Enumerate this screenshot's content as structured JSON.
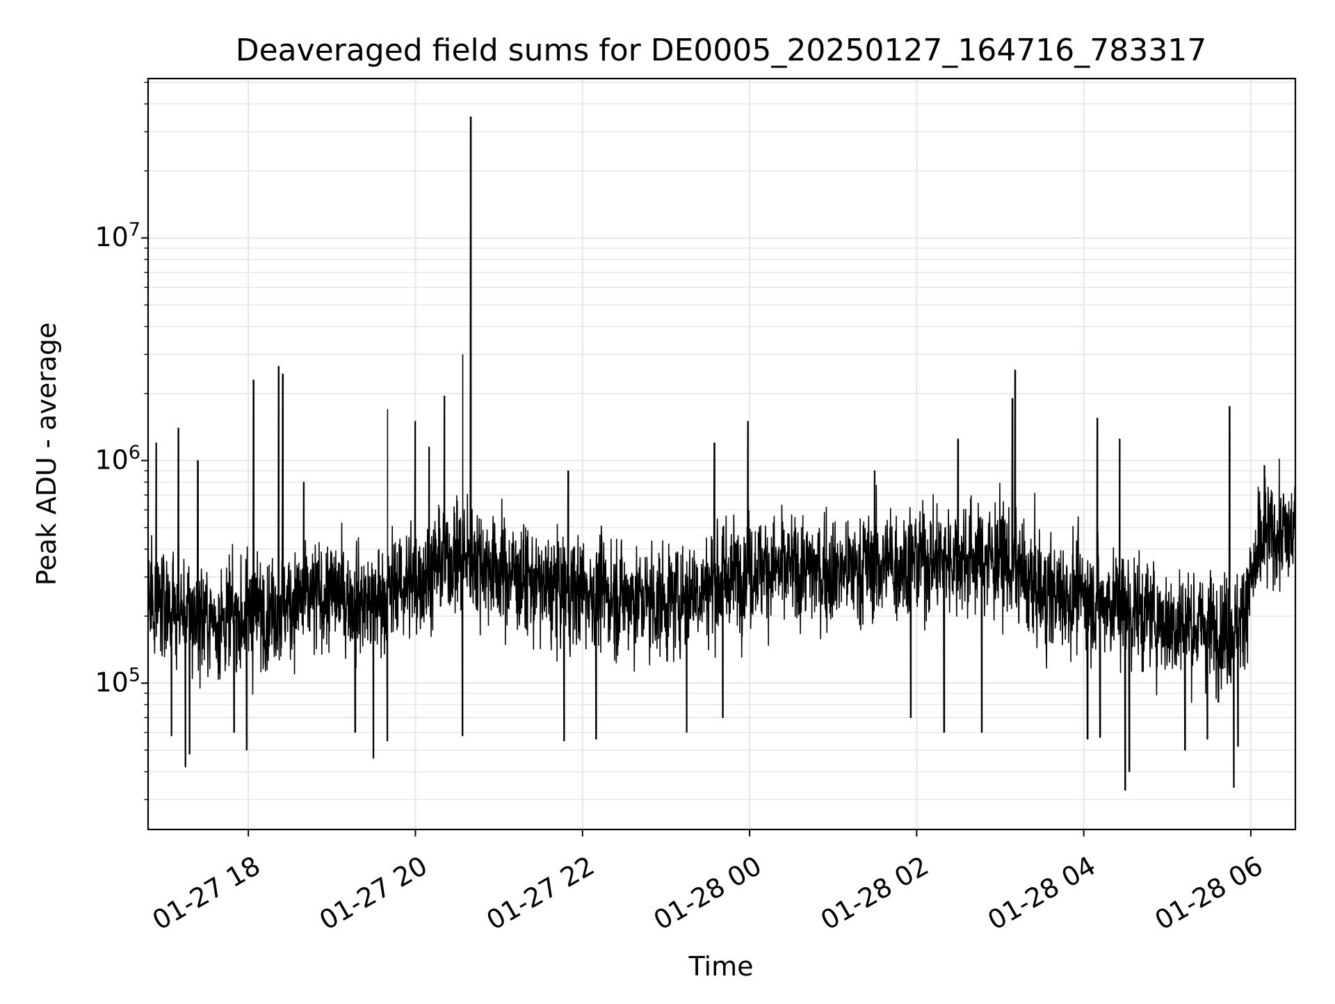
{
  "chart_data": {
    "type": "line",
    "title": "Deaveraged field sums for DE0005_20250127_164716_783317",
    "xlabel": "Time",
    "ylabel": "Peak ADU - average",
    "yscale": "log",
    "ylim": [
      22000,
      52000000
    ],
    "xlim": [
      "01-27 16:48",
      "01-28 06:32"
    ],
    "grid": true,
    "line_color": "#000000",
    "grid_color": "#e6e6e6",
    "x_ticks": [
      {
        "value": "01-27 18:00",
        "label": "01-27 18"
      },
      {
        "value": "01-27 20:00",
        "label": "01-27 20"
      },
      {
        "value": "01-27 22:00",
        "label": "01-27 22"
      },
      {
        "value": "01-28 00:00",
        "label": "01-28 00"
      },
      {
        "value": "01-28 02:00",
        "label": "01-28 02"
      },
      {
        "value": "01-28 04:00",
        "label": "01-28 04"
      },
      {
        "value": "01-28 06:00",
        "label": "01-28 06"
      }
    ],
    "y_ticks": [
      {
        "value": 100000,
        "base": "10",
        "exp": "5"
      },
      {
        "value": 1000000,
        "base": "10",
        "exp": "6"
      },
      {
        "value": 10000000,
        "base": "10",
        "exp": "7"
      }
    ],
    "series": [
      {
        "color": "#000000",
        "baseline_points": [
          {
            "x": "01-27 16:48",
            "y": 250000
          },
          {
            "x": "01-27 17:15",
            "y": 200000
          },
          {
            "x": "01-27 17:45",
            "y": 190000
          },
          {
            "x": "01-27 18:30",
            "y": 230000
          },
          {
            "x": "01-27 19:00",
            "y": 250000
          },
          {
            "x": "01-27 19:30",
            "y": 230000
          },
          {
            "x": "01-27 20:00",
            "y": 300000
          },
          {
            "x": "01-27 20:30",
            "y": 380000
          },
          {
            "x": "01-27 21:00",
            "y": 330000
          },
          {
            "x": "01-27 21:30",
            "y": 270000
          },
          {
            "x": "01-27 22:00",
            "y": 260000
          },
          {
            "x": "01-27 23:00",
            "y": 230000
          },
          {
            "x": "01-28 00:00",
            "y": 330000
          },
          {
            "x": "01-28 01:00",
            "y": 320000
          },
          {
            "x": "01-28 02:00",
            "y": 360000
          },
          {
            "x": "01-28 03:00",
            "y": 370000
          },
          {
            "x": "01-28 03:30",
            "y": 250000
          },
          {
            "x": "01-28 04:00",
            "y": 250000
          },
          {
            "x": "01-28 05:00",
            "y": 190000
          },
          {
            "x": "01-28 05:50",
            "y": 170000
          },
          {
            "x": "01-28 06:10",
            "y": 450000
          },
          {
            "x": "01-28 06:32",
            "y": 470000
          }
        ],
        "peaks": [
          {
            "x": "01-27 20:40",
            "y": 35000000
          },
          {
            "x": "01-27 20:34",
            "y": 3000000
          },
          {
            "x": "01-27 18:22",
            "y": 2650000
          },
          {
            "x": "01-27 18:25",
            "y": 2450000
          },
          {
            "x": "01-28 03:11",
            "y": 2550000
          },
          {
            "x": "01-27 18:04",
            "y": 2300000
          },
          {
            "x": "01-27 20:21",
            "y": 1950000
          },
          {
            "x": "01-28 03:09",
            "y": 1900000
          },
          {
            "x": "01-27 19:40",
            "y": 1700000
          },
          {
            "x": "01-27 20:00",
            "y": 1500000
          },
          {
            "x": "01-27 23:59",
            "y": 1500000
          },
          {
            "x": "01-28 05:45",
            "y": 1750000
          },
          {
            "x": "01-27 17:10",
            "y": 1400000
          },
          {
            "x": "01-28 04:10",
            "y": 1550000
          },
          {
            "x": "01-28 02:30",
            "y": 1250000
          },
          {
            "x": "01-28 04:26",
            "y": 1250000
          },
          {
            "x": "01-27 23:35",
            "y": 1200000
          },
          {
            "x": "01-27 16:54",
            "y": 1200000
          },
          {
            "x": "01-27 20:10",
            "y": 1150000
          },
          {
            "x": "01-27 17:24",
            "y": 1000000
          },
          {
            "x": "01-28 06:10",
            "y": 950000
          },
          {
            "x": "01-28 01:30",
            "y": 900000
          },
          {
            "x": "01-27 21:50",
            "y": 900000
          },
          {
            "x": "01-27 18:40",
            "y": 800000
          }
        ],
        "dips": [
          {
            "x": "01-28 04:30",
            "y": 33000
          },
          {
            "x": "01-28 05:48",
            "y": 34000
          },
          {
            "x": "01-28 04:33",
            "y": 40000
          },
          {
            "x": "01-27 17:15",
            "y": 42000
          },
          {
            "x": "01-27 19:30",
            "y": 46000
          },
          {
            "x": "01-27 17:18",
            "y": 48000
          },
          {
            "x": "01-27 17:59",
            "y": 50000
          },
          {
            "x": "01-28 05:51",
            "y": 52000
          },
          {
            "x": "01-27 19:40",
            "y": 55000
          },
          {
            "x": "01-27 21:47",
            "y": 55000
          },
          {
            "x": "01-27 22:10",
            "y": 56000
          },
          {
            "x": "01-27 20:34",
            "y": 58000
          },
          {
            "x": "01-27 17:05",
            "y": 58000
          },
          {
            "x": "01-27 17:50",
            "y": 60000
          },
          {
            "x": "01-28 04:03",
            "y": 56000
          },
          {
            "x": "01-28 04:12",
            "y": 57000
          },
          {
            "x": "01-28 05:13",
            "y": 50000
          },
          {
            "x": "01-28 05:29",
            "y": 56000
          },
          {
            "x": "01-28 02:20",
            "y": 60000
          },
          {
            "x": "01-28 02:47",
            "y": 60000
          },
          {
            "x": "01-27 23:15",
            "y": 60000
          },
          {
            "x": "01-27 19:17",
            "y": 60000
          },
          {
            "x": "01-28 01:56",
            "y": 70000
          },
          {
            "x": "01-27 23:41",
            "y": 70000
          }
        ]
      }
    ]
  }
}
